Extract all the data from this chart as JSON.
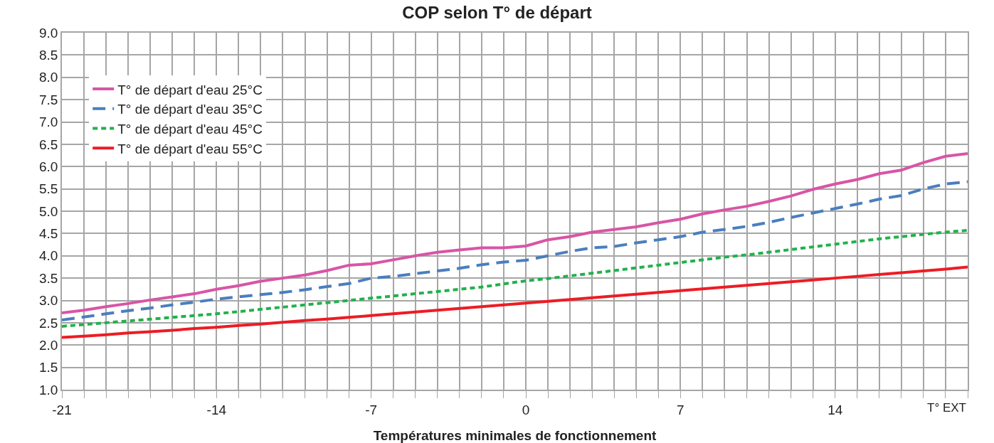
{
  "chart_data": {
    "type": "line",
    "title": "COP selon T° de départ",
    "xlabel": "Températures minimales de fonctionnement",
    "x": [
      -21,
      -20,
      -19,
      -18,
      -17,
      -16,
      -15,
      -14,
      -13,
      -12,
      -11,
      -10,
      -9,
      -8,
      -7,
      -6,
      -5,
      -4,
      -3,
      -2,
      -1,
      0,
      1,
      2,
      3,
      4,
      5,
      6,
      7,
      8,
      9,
      10,
      11,
      12,
      13,
      14,
      15,
      16,
      17,
      18,
      19,
      20
    ],
    "series": [
      {
        "name": "T° de départ d'eau 25°C",
        "color": "#d855a5",
        "line_style": "solid",
        "values": [
          2.72,
          2.78,
          2.86,
          2.93,
          3.01,
          3.08,
          3.15,
          3.25,
          3.33,
          3.43,
          3.5,
          3.57,
          3.67,
          3.79,
          3.82,
          3.91,
          4.0,
          4.08,
          4.13,
          4.18,
          4.18,
          4.22,
          4.36,
          4.43,
          4.53,
          4.59,
          4.65,
          4.74,
          4.82,
          4.94,
          5.03,
          5.11,
          5.22,
          5.34,
          5.49,
          5.61,
          5.71,
          5.84,
          5.92,
          6.09,
          6.23,
          6.29
        ]
      },
      {
        "name": "T° de départ d'eau 35°C",
        "color": "#4a7ebf",
        "line_style": "dashed",
        "values": [
          2.56,
          2.63,
          2.7,
          2.77,
          2.83,
          2.9,
          2.96,
          3.03,
          3.08,
          3.13,
          3.18,
          3.24,
          3.31,
          3.38,
          3.5,
          3.54,
          3.6,
          3.66,
          3.72,
          3.8,
          3.86,
          3.9,
          4.0,
          4.1,
          4.18,
          4.21,
          4.29,
          4.36,
          4.43,
          4.53,
          4.59,
          4.66,
          4.75,
          4.86,
          4.96,
          5.06,
          5.16,
          5.27,
          5.35,
          5.5,
          5.61,
          5.66
        ]
      },
      {
        "name": "T° de départ d'eau 45°C",
        "color": "#22b14c",
        "line_style": "dotted",
        "values": [
          2.42,
          2.46,
          2.5,
          2.54,
          2.58,
          2.62,
          2.66,
          2.7,
          2.75,
          2.8,
          2.85,
          2.9,
          2.95,
          3.0,
          3.05,
          3.1,
          3.15,
          3.2,
          3.25,
          3.3,
          3.37,
          3.44,
          3.49,
          3.55,
          3.61,
          3.67,
          3.73,
          3.79,
          3.85,
          3.91,
          3.97,
          4.02,
          4.08,
          4.14,
          4.2,
          4.26,
          4.32,
          4.38,
          4.43,
          4.48,
          4.53,
          4.57
        ]
      },
      {
        "name": "T° de départ d'eau 55°C",
        "color": "#ed1c24",
        "line_style": "solid",
        "values": [
          2.17,
          2.2,
          2.23,
          2.27,
          2.3,
          2.33,
          2.37,
          2.4,
          2.44,
          2.47,
          2.51,
          2.55,
          2.58,
          2.62,
          2.66,
          2.7,
          2.74,
          2.78,
          2.82,
          2.86,
          2.9,
          2.94,
          2.98,
          3.02,
          3.06,
          3.1,
          3.14,
          3.18,
          3.22,
          3.26,
          3.3,
          3.34,
          3.38,
          3.42,
          3.46,
          3.5,
          3.54,
          3.58,
          3.62,
          3.66,
          3.7,
          3.75
        ]
      }
    ],
    "xlim": [
      -21,
      20
    ],
    "xticks": [
      -21,
      {
        "value": -20,
        "label": null
      },
      {
        "value": -19,
        "label": null
      },
      {
        "value": -18,
        "label": null
      },
      {
        "value": -17,
        "label": null
      },
      {
        "value": -16,
        "label": null
      },
      {
        "value": -15,
        "label": null
      },
      -14,
      {
        "value": -13,
        "label": null
      },
      {
        "value": -12,
        "label": null
      },
      {
        "value": -11,
        "label": null
      },
      {
        "value": -10,
        "label": null
      },
      {
        "value": -9,
        "label": null
      },
      {
        "value": -8,
        "label": null
      },
      -7,
      {
        "value": -6,
        "label": null
      },
      {
        "value": -5,
        "label": null
      },
      {
        "value": -4,
        "label": null
      },
      {
        "value": -3,
        "label": null
      },
      {
        "value": -2,
        "label": null
      },
      {
        "value": -1,
        "label": null
      },
      0,
      {
        "value": 1,
        "label": null
      },
      {
        "value": 2,
        "label": null
      },
      {
        "value": 3,
        "label": null
      },
      {
        "value": 4,
        "label": null
      },
      {
        "value": 5,
        "label": null
      },
      {
        "value": 6,
        "label": null
      },
      7,
      {
        "value": 8,
        "label": null
      },
      {
        "value": 9,
        "label": null
      },
      {
        "value": 10,
        "label": null
      },
      {
        "value": 11,
        "label": null
      },
      {
        "value": 12,
        "label": null
      },
      {
        "value": 13,
        "label": null
      },
      14,
      {
        "value": 15,
        "label": null
      },
      {
        "value": 16,
        "label": null
      },
      {
        "value": 17,
        "label": null
      },
      {
        "value": 18,
        "label": null
      },
      {
        "value": 19,
        "label": null
      },
      {
        "value": 20,
        "label": null
      }
    ],
    "ylim": [
      1.0,
      9.0
    ],
    "yticks": [
      {
        "value": 1,
        "label": "1.0"
      },
      {
        "value": 1.5,
        "label": "1.5"
      },
      {
        "value": 2,
        "label": "2.0"
      },
      {
        "value": 2.5,
        "label": "2.5"
      },
      {
        "value": 3,
        "label": "3.0"
      },
      {
        "value": 3.5,
        "label": "3.5"
      },
      {
        "value": 4,
        "label": "4.0"
      },
      {
        "value": 4.5,
        "label": "4.5"
      },
      {
        "value": 5,
        "label": "5.0"
      },
      {
        "value": 5.5,
        "label": "5.5"
      },
      {
        "value": 6,
        "label": "6.0"
      },
      {
        "value": 6.5,
        "label": "6.5"
      },
      {
        "value": 7,
        "label": "7.0"
      },
      {
        "value": 7.5,
        "label": "7.5"
      },
      {
        "value": 8,
        "label": "8.0"
      },
      {
        "value": 8.5,
        "label": "8.5"
      },
      {
        "value": 9,
        "label": "9.0"
      }
    ],
    "annotations": [
      "T° EXT"
    ],
    "grid": true,
    "legend": "top left",
    "marker": "none"
  }
}
